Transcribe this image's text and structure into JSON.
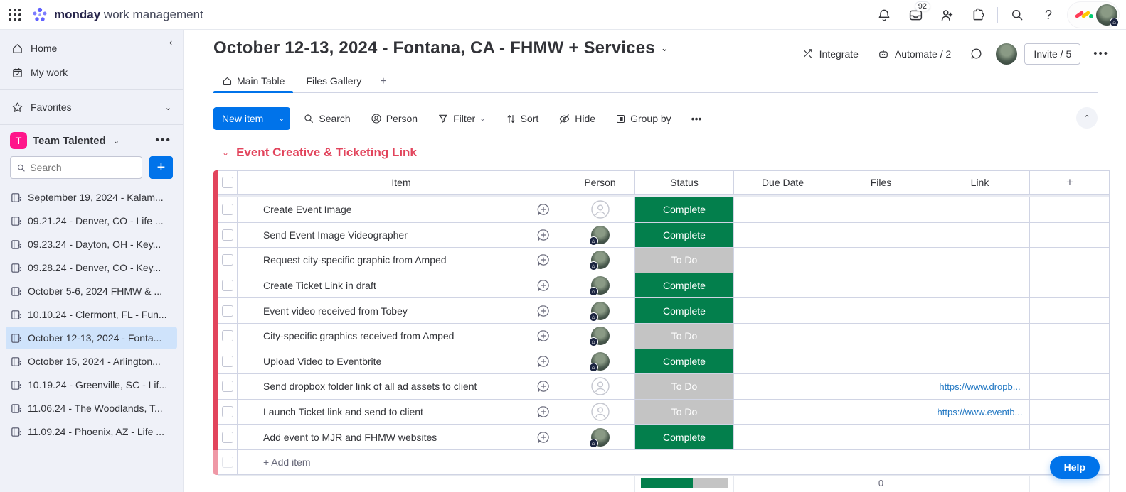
{
  "colors": {
    "accent_blue": "#0073ea",
    "group_red": "#e2445c",
    "status": {
      "Complete": "#037f4c",
      "To Do": "#c4c4c4"
    },
    "link_blue": "#1f76c2",
    "workspace_pink": "#ff158a"
  },
  "icons": {
    "chevron_down": "⌄",
    "chevron_up": "⌃",
    "chevron_left": "‹",
    "ellipsis": "•••",
    "plus": "+",
    "question": "?"
  },
  "topbar": {
    "brand_bold": "monday",
    "brand_light": " work management",
    "inbox_badge": "92"
  },
  "sidebar": {
    "home_label": "Home",
    "my_work_label": "My work",
    "favorites_label": "Favorites",
    "workspace": {
      "initial": "T",
      "name": "Team Talented"
    },
    "search_placeholder": "Search",
    "boards": [
      {
        "label": "September 19, 2024 - Kalam...",
        "selected": false
      },
      {
        "label": "09.21.24 - Denver, CO - Life ...",
        "selected": false
      },
      {
        "label": "09.23.24 - Dayton, OH - Key...",
        "selected": false
      },
      {
        "label": "09.28.24 - Denver, CO - Key...",
        "selected": false
      },
      {
        "label": "October 5-6, 2024 FHMW & ...",
        "selected": false
      },
      {
        "label": "10.10.24 - Clermont, FL - Fun...",
        "selected": false
      },
      {
        "label": "October 12-13, 2024 - Fonta...",
        "selected": true
      },
      {
        "label": "October 15, 2024 - Arlington...",
        "selected": false
      },
      {
        "label": "10.19.24 - Greenville, SC - Lif...",
        "selected": false
      },
      {
        "label": "11.06.24 - The Woodlands, T...",
        "selected": false
      },
      {
        "label": "11.09.24 - Phoenix, AZ - Life ...",
        "selected": false
      }
    ]
  },
  "board": {
    "title": "October 12-13, 2024 - Fontana, CA - FHMW + Services",
    "actions": {
      "integrate": "Integrate",
      "automate": "Automate / 2",
      "invite": "Invite / 5"
    },
    "tabs": [
      {
        "label": "Main Table",
        "active": true
      },
      {
        "label": "Files Gallery",
        "active": false
      }
    ],
    "toolbar": {
      "new_item": "New item",
      "search": "Search",
      "person": "Person",
      "filter": "Filter",
      "sort": "Sort",
      "hide": "Hide",
      "group_by": "Group by"
    }
  },
  "group": {
    "title": "Event Creative & Ticketing Link",
    "columns": [
      "Item",
      "Person",
      "Status",
      "Due Date",
      "Files",
      "Link"
    ],
    "rows": [
      {
        "item": "Create Event Image",
        "has_person": false,
        "status": "Complete",
        "link": ""
      },
      {
        "item": "Send Event Image Videographer",
        "has_person": true,
        "status": "Complete",
        "link": ""
      },
      {
        "item": "Request city-specific graphic from Amped",
        "has_person": true,
        "status": "To Do",
        "link": ""
      },
      {
        "item": "Create Ticket Link in draft",
        "has_person": true,
        "status": "Complete",
        "link": ""
      },
      {
        "item": "Event video received from Tobey",
        "has_person": true,
        "status": "Complete",
        "link": ""
      },
      {
        "item": "City-specific graphics received from Amped",
        "has_person": true,
        "status": "To Do",
        "link": ""
      },
      {
        "item": "Upload Video to Eventbrite",
        "has_person": true,
        "status": "Complete",
        "link": ""
      },
      {
        "item": "Send dropbox folder link of all ad assets to client",
        "has_person": false,
        "status": "To Do",
        "link": "https://www.dropb..."
      },
      {
        "item": "Launch Ticket link and send to client",
        "has_person": false,
        "status": "To Do",
        "link": "https://www.eventb..."
      },
      {
        "item": "Add event to MJR and FHMW websites",
        "has_person": true,
        "status": "Complete",
        "link": ""
      }
    ],
    "add_item_label": "+ Add item",
    "footer": {
      "complete_pct": 60,
      "todo_pct": 40,
      "files_count": "0"
    }
  },
  "help_label": "Help"
}
